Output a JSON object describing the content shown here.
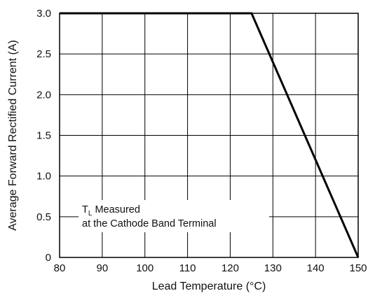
{
  "chart_data": {
    "type": "line",
    "title": "",
    "xlabel": "Lead Temperature (°C)",
    "ylabel": "Average Forward Rectified Current (A)",
    "xlim": [
      80,
      150
    ],
    "ylim": [
      0,
      3.0
    ],
    "grid": true,
    "x_ticks": [
      80,
      90,
      100,
      110,
      120,
      130,
      140,
      150
    ],
    "x_tick_labels": [
      "80",
      "90",
      "100",
      "110",
      "120",
      "130",
      "140",
      "150"
    ],
    "y_ticks": [
      0,
      0.5,
      1.0,
      1.5,
      2.0,
      2.5,
      3.0
    ],
    "y_tick_labels": [
      "0",
      "0.5",
      "1.0",
      "1.5",
      "2.0",
      "2.5",
      "3.0"
    ],
    "series": [
      {
        "x": [
          80,
          125,
          150
        ],
        "y": [
          3.0,
          3.0,
          0
        ],
        "color": "#000000"
      }
    ],
    "annotation": {
      "main": "T",
      "subscript": "L",
      "line1_rest": " Measured",
      "line2": "at the Cathode Band Terminal"
    }
  }
}
